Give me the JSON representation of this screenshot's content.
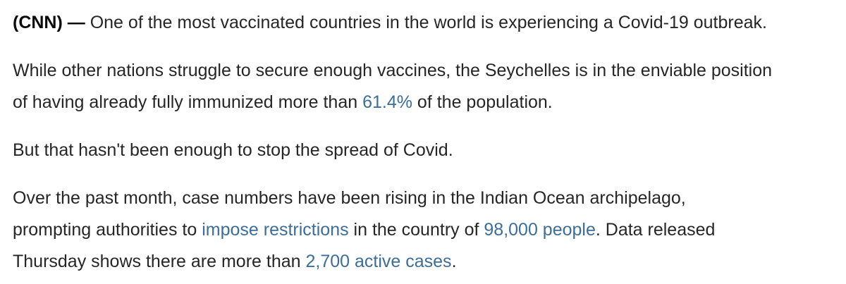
{
  "paragraphs": [
    [
      "(CNN) —",
      " One of the most vaccinated countries in the world is experiencing a Covid-19 outbreak."
    ],
    [
      "While other nations struggle to secure enough vaccines, the Seychelles is in the enviable position",
      "of having already fully immunized more than ",
      "61.4%",
      " of the population."
    ],
    [
      "But that hasn't been enough to stop the spread of Covid."
    ],
    [
      "Over the past month, case numbers have been rising in the Indian Ocean archipelago,",
      "prompting authorities to ",
      "impose restrictions",
      " in the country of ",
      "98,000 people",
      ". Data released",
      "Thursday shows there are more than ",
      "2,700 active cases",
      "."
    ]
  ]
}
